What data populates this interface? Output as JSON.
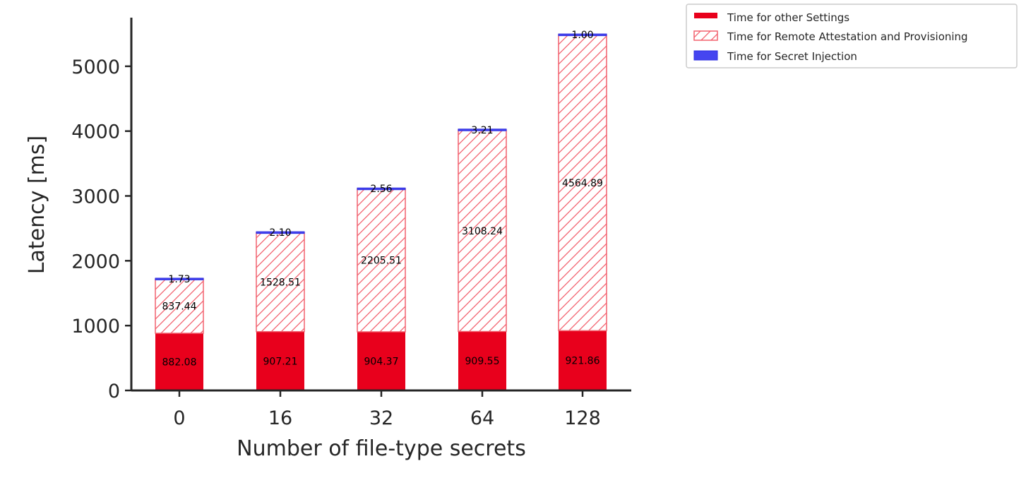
{
  "chart_data": {
    "type": "bar",
    "stacked": true,
    "categories": [
      "0",
      "16",
      "32",
      "64",
      "128"
    ],
    "xlabel": "Number of file-type secrets",
    "ylabel": "Latency [ms]",
    "ylim": [
      0,
      5750
    ],
    "yticks": [
      0,
      1000,
      2000,
      3000,
      4000,
      5000
    ],
    "grid": false,
    "legend_position": "outside-top-right",
    "series": [
      {
        "name": "Time for other Settings",
        "values": [
          882.08,
          907.21,
          904.37,
          909.55,
          921.86
        ],
        "labels": [
          "882.08",
          "907.21",
          "904.37",
          "909.55",
          "921.86"
        ],
        "color": "#e8001c",
        "fill": "solid"
      },
      {
        "name": "Time for Remote Attestation and Provisioning",
        "values": [
          837.44,
          1528.51,
          2205.51,
          3108.24,
          4564.89
        ],
        "labels": [
          "837.44",
          "1528.51",
          "2205.51",
          "3108.24",
          "4564.89"
        ],
        "color": "#f2606e",
        "fill": "hatched"
      },
      {
        "name": "Time for Secret Injection",
        "values": [
          1.73,
          2.1,
          2.56,
          3.21,
          1.0
        ],
        "labels": [
          "1.73",
          "2.10",
          "2.56",
          "3.21",
          "1.00"
        ],
        "color": "#4545f0",
        "fill": "solid"
      }
    ]
  }
}
